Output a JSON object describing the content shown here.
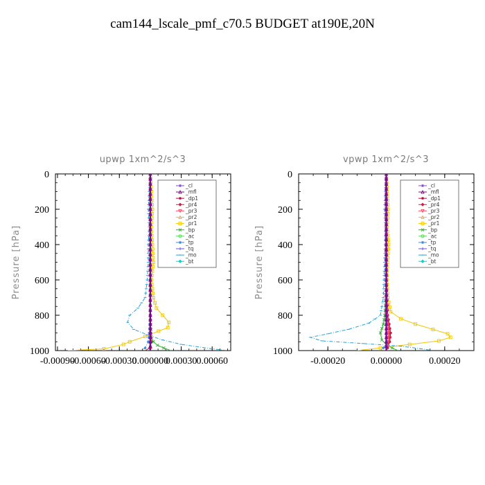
{
  "page_title": "cam144_lscale_pmf_c70.5  BUDGET at190E,20N",
  "legend": [
    {
      "name": "_cl",
      "color": "#8c46c8",
      "marker": "star"
    },
    {
      "name": "_mfl",
      "color": "#7a0a8c",
      "marker": "tri"
    },
    {
      "name": "_dp1",
      "color": "#b40a3c",
      "marker": "star"
    },
    {
      "name": "_pr4",
      "color": "#d21e46",
      "marker": "diamond"
    },
    {
      "name": "_pr3",
      "color": "#f05064",
      "marker": "tri-down"
    },
    {
      "name": "_pr2",
      "color": "#ffaa3c",
      "marker": "tri"
    },
    {
      "name": "_pr1",
      "color": "#f0c800",
      "marker": "square"
    },
    {
      "name": "_bp",
      "color": "#28b428",
      "marker": "x"
    },
    {
      "name": "_ac",
      "color": "#46dc46",
      "marker": "circle"
    },
    {
      "name": "_tp",
      "color": "#3c8cdc",
      "marker": "star"
    },
    {
      "name": "_tq",
      "color": "#5a50e6",
      "marker": "plus"
    },
    {
      "name": "_mo",
      "color": "#28a0d2",
      "marker": "dash"
    },
    {
      "name": "_bt",
      "color": "#00d2d2",
      "marker": "diamond"
    }
  ],
  "chart_data": [
    {
      "type": "line",
      "title": "upwp   1xm^2/s^3",
      "xlabel": "",
      "ylabel": "Pressure [hPa]",
      "xlim": [
        -0.00092,
        0.00078
      ],
      "ylim": [
        1000,
        0
      ],
      "y_reversed": true,
      "xticks": [
        -0.0009,
        -0.0006,
        -0.0003,
        0.0,
        0.0003,
        0.0006
      ],
      "xtick_labels": [
        "-0.00090",
        "-0.00060",
        "-0.00030",
        "0.000000",
        "0.00030",
        "0.00060"
      ],
      "yticks": [
        0,
        200,
        400,
        600,
        800,
        1000
      ],
      "ytick_labels": [
        "0",
        "200",
        "400",
        "600",
        "800",
        "1000"
      ],
      "legend_position": "top-right",
      "grid": false,
      "series": [
        {
          "name": "_pr1",
          "x": [
            0,
            1e-05,
            2e-05,
            1e-05,
            2e-05,
            3e-05,
            1e-05,
            3e-05,
            6e-05,
            0.00012,
            0.00018,
            0.00017,
            8e-05,
            -5e-05,
            -0.0002,
            -0.00026,
            -0.00045,
            -0.0008
          ],
          "y": [
            0,
            100,
            200,
            300,
            400,
            500,
            600,
            700,
            760,
            800,
            840,
            870,
            890,
            920,
            950,
            965,
            990,
            1000
          ]
        },
        {
          "name": "_mo",
          "x": [
            0,
            -1e-05,
            -2e-05,
            -1e-05,
            -2e-05,
            -2e-05,
            -3e-05,
            -5e-05,
            -0.00012,
            -0.0002,
            -0.00022,
            -0.00016,
            -3e-05,
            0.00012,
            0.0003,
            0.0006,
            0.00075
          ],
          "y": [
            0,
            100,
            200,
            300,
            400,
            500,
            600,
            700,
            760,
            800,
            840,
            880,
            910,
            940,
            965,
            990,
            1000
          ]
        },
        {
          "name": "_bp",
          "x": [
            0,
            0,
            0,
            0,
            0,
            5e-06,
            1e-05,
            3e-05,
            7e-05,
            0.00013,
            0.0002
          ],
          "y": [
            0,
            200,
            400,
            600,
            800,
            880,
            920,
            950,
            970,
            985,
            1000
          ]
        },
        {
          "name": "_tp",
          "x": [
            0,
            0,
            0,
            0,
            0,
            -1e-05,
            -2e-05,
            -5e-05,
            -9e-05
          ],
          "y": [
            0,
            200,
            400,
            600,
            800,
            900,
            950,
            985,
            1000
          ]
        },
        {
          "name": "_dp1",
          "x": [
            0,
            0,
            0,
            0,
            0,
            5e-06,
            1e-05,
            -5e-06,
            -5e-05
          ],
          "y": [
            0,
            200,
            400,
            600,
            800,
            900,
            950,
            985,
            1000
          ]
        },
        {
          "name": "_pr4",
          "x": [
            0,
            0,
            0,
            0,
            0,
            3e-06,
            8e-06,
            3e-06,
            -1e-05
          ],
          "y": [
            0,
            200,
            400,
            600,
            800,
            900,
            950,
            985,
            1000
          ]
        },
        {
          "name": "_cl",
          "x": [
            0,
            0,
            0,
            0,
            0,
            0,
            0
          ],
          "y": [
            0,
            200,
            400,
            600,
            800,
            900,
            1000
          ]
        },
        {
          "name": "_mfl",
          "x": [
            0,
            0,
            0,
            0,
            0,
            0,
            0
          ],
          "y": [
            0,
            200,
            400,
            600,
            800,
            900,
            1000
          ]
        }
      ]
    },
    {
      "type": "line",
      "title": "vpwp   1xm^2/s^3",
      "xlabel": "",
      "ylabel": "Pressure [hPa]",
      "xlim": [
        -0.0003,
        0.0003
      ],
      "ylim": [
        1000,
        0
      ],
      "y_reversed": true,
      "xticks": [
        -0.0002,
        0.0,
        0.0002
      ],
      "xtick_labels": [
        "-0.00020",
        "0.00000",
        "0.00020"
      ],
      "yticks": [
        0,
        200,
        400,
        600,
        800,
        1000
      ],
      "ytick_labels": [
        "0",
        "200",
        "400",
        "600",
        "800",
        "1000"
      ],
      "legend_position": "top-right",
      "grid": false,
      "series": [
        {
          "name": "_pr1",
          "x": [
            0,
            3e-06,
            6e-06,
            3e-06,
            8e-06,
            4e-06,
            2e-06,
            5e-06,
            1.5e-05,
            5e-05,
            0.0001,
            0.00016,
            0.00021,
            0.00022,
            0.00018,
            8e-05,
            -2e-05,
            -0.0001
          ],
          "y": [
            0,
            100,
            200,
            300,
            400,
            500,
            600,
            700,
            780,
            820,
            850,
            880,
            905,
            925,
            945,
            965,
            985,
            1000
          ]
        },
        {
          "name": "_mo",
          "x": [
            0,
            -3e-06,
            -6e-06,
            -3e-06,
            -4e-06,
            -6e-06,
            -8e-06,
            -1e-05,
            -2e-05,
            -6e-05,
            -0.00013,
            -0.0002,
            -0.00026,
            -0.00022,
            -8e-05,
            5e-05,
            0.00012,
            0.00016
          ],
          "y": [
            0,
            100,
            200,
            300,
            400,
            500,
            600,
            700,
            800,
            845,
            880,
            905,
            925,
            945,
            960,
            975,
            990,
            1000
          ]
        },
        {
          "name": "_bp",
          "x": [
            0,
            0,
            0,
            0,
            -5e-06,
            -1e-05,
            -2e-05,
            -1.5e-05,
            0,
            2e-05,
            4e-05
          ],
          "y": [
            0,
            200,
            400,
            600,
            800,
            850,
            900,
            940,
            965,
            985,
            1000
          ]
        },
        {
          "name": "_tp",
          "x": [
            0,
            0,
            0,
            0,
            5e-06,
            1e-05,
            1e-05,
            5e-06,
            -1e-05,
            -2e-05
          ],
          "y": [
            0,
            200,
            400,
            600,
            800,
            850,
            900,
            950,
            985,
            1000
          ]
        },
        {
          "name": "_dp1",
          "x": [
            0,
            0,
            0,
            0,
            5e-06,
            1e-05,
            1.5e-05,
            1.2e-05,
            5e-06,
            -2e-06
          ],
          "y": [
            0,
            200,
            400,
            600,
            800,
            850,
            900,
            950,
            985,
            1000
          ]
        },
        {
          "name": "_pr4",
          "x": [
            0,
            0,
            0,
            0,
            3e-06,
            8e-06,
            1.2e-05,
            1e-05,
            3e-06,
            -3e-06
          ],
          "y": [
            0,
            200,
            400,
            600,
            800,
            850,
            900,
            950,
            985,
            1000
          ]
        },
        {
          "name": "_pr3",
          "x": [
            0,
            0,
            0,
            0,
            2e-06,
            5e-06,
            8e-06,
            6e-06,
            2e-06
          ],
          "y": [
            0,
            200,
            400,
            600,
            800,
            850,
            900,
            950,
            1000
          ]
        },
        {
          "name": "_cl",
          "x": [
            0,
            0,
            0,
            0,
            0,
            0,
            0
          ],
          "y": [
            0,
            200,
            400,
            600,
            800,
            900,
            1000
          ]
        },
        {
          "name": "_mfl",
          "x": [
            0,
            0,
            0,
            0,
            0,
            0,
            0
          ],
          "y": [
            0,
            200,
            400,
            600,
            800,
            900,
            1000
          ]
        }
      ]
    }
  ]
}
